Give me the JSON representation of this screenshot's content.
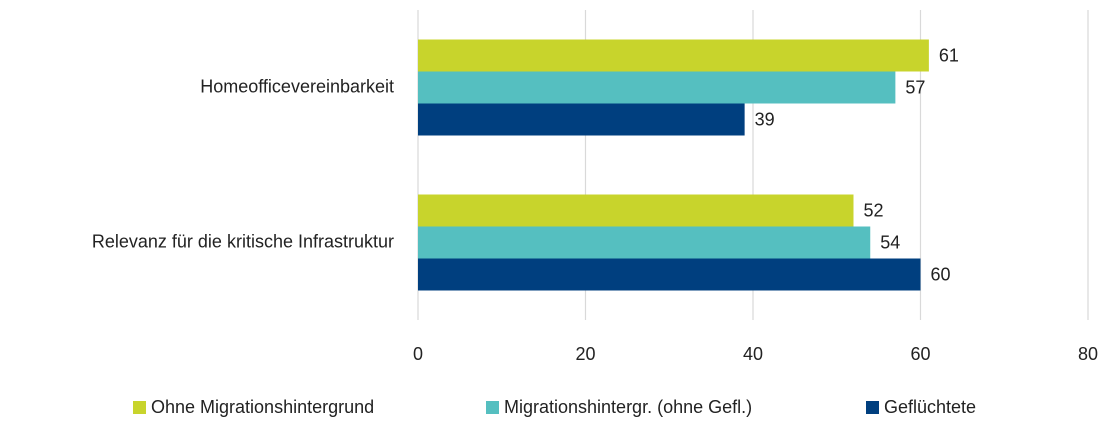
{
  "chart_data": {
    "type": "bar",
    "orientation": "horizontal",
    "categories": [
      "Homeofficevereinbarkeit",
      "Relevanz für die kritische Infrastruktur"
    ],
    "series": [
      {
        "name": "Ohne Migrationshintergrund",
        "color": "#c8d42c",
        "values": [
          61,
          52
        ]
      },
      {
        "name": "Migrationshintergr. (ohne Gefl.)",
        "color": "#55bfc0",
        "values": [
          57,
          54
        ]
      },
      {
        "name": "Geflüchtete",
        "color": "#003f7f",
        "values": [
          39,
          60
        ]
      }
    ],
    "xlim": [
      0,
      80
    ],
    "xticks": [
      0,
      20,
      40,
      60,
      80
    ],
    "grid": true,
    "legend": "bottom"
  }
}
